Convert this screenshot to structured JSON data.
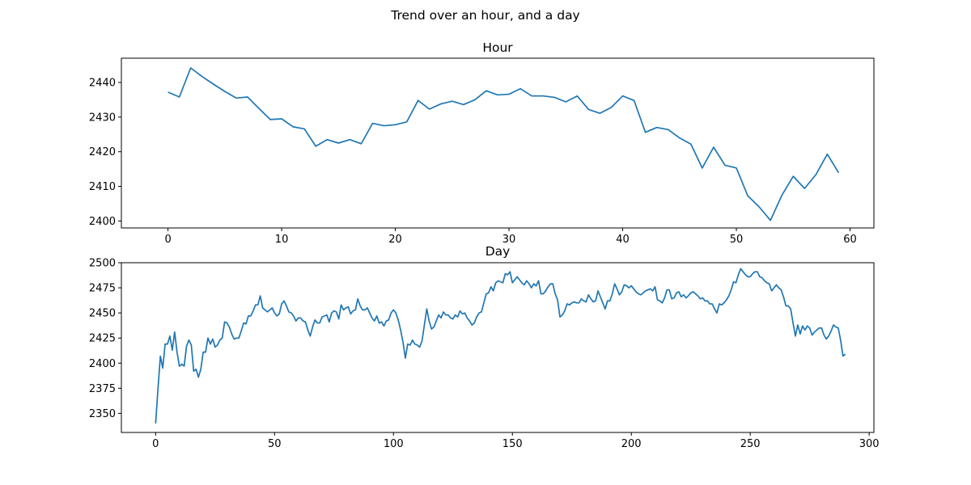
{
  "figure_title": "Trend over an hour, and a day",
  "line_color": "#1f77b4",
  "chart_data": [
    {
      "type": "line",
      "title": "Hour",
      "xlabel": "",
      "ylabel": "",
      "grid": false,
      "xlim": [
        -4.1,
        62.1
      ],
      "ylim": [
        2398,
        2447
      ],
      "xticks": [
        0,
        10,
        20,
        30,
        40,
        50,
        60
      ],
      "yticks": [
        2400,
        2410,
        2420,
        2430,
        2440
      ],
      "x_start": 0,
      "x_step": 1,
      "values": [
        2437.2,
        2435.8,
        2444.2,
        2441.7,
        2439.5,
        2437.4,
        2435.5,
        2435.8,
        2432.5,
        2429.3,
        2429.5,
        2427.2,
        2426.6,
        2421.6,
        2423.5,
        2422.5,
        2423.5,
        2422.3,
        2428.2,
        2427.5,
        2427.8,
        2428.6,
        2434.8,
        2432.3,
        2433.8,
        2434.6,
        2433.6,
        2435.0,
        2437.6,
        2436.4,
        2436.6,
        2438.2,
        2436.1,
        2436.1,
        2435.7,
        2434.4,
        2436.1,
        2432.2,
        2431.1,
        2432.8,
        2436.1,
        2434.8,
        2425.6,
        2427.0,
        2426.4,
        2424.0,
        2422.2,
        2415.3,
        2421.3,
        2416.1,
        2415.3,
        2407.3,
        2404.1,
        2400.2,
        2407.4,
        2412.9,
        2409.4,
        2413.4,
        2419.3,
        2413.9
      ]
    },
    {
      "type": "line",
      "title": "Day",
      "xlabel": "",
      "ylabel": "",
      "grid": false,
      "xlim": [
        -14.4,
        302
      ],
      "ylim": [
        2331,
        2500
      ],
      "xticks": [
        0,
        50,
        100,
        150,
        200,
        250,
        300
      ],
      "yticks": [
        2350,
        2375,
        2400,
        2425,
        2450,
        2475,
        2500
      ],
      "x_start": 0,
      "x_step": 1,
      "values": [
        2340,
        2375,
        2407,
        2395,
        2419,
        2419,
        2427,
        2413,
        2431,
        2411,
        2397,
        2399,
        2397,
        2417,
        2423,
        2418,
        2392,
        2394,
        2386,
        2394,
        2411,
        2411,
        2425,
        2419,
        2424,
        2416,
        2418,
        2423,
        2425,
        2441,
        2440,
        2436,
        2429,
        2424,
        2425,
        2425,
        2432,
        2440,
        2439,
        2447,
        2447,
        2452,
        2458,
        2458,
        2467,
        2455,
        2453,
        2451,
        2453,
        2455,
        2450,
        2447,
        2449,
        2459,
        2462,
        2457,
        2451,
        2450,
        2447,
        2442,
        2445,
        2445,
        2442,
        2441,
        2433,
        2427,
        2436,
        2443,
        2440,
        2440,
        2446,
        2447,
        2448,
        2441,
        2450,
        2452,
        2451,
        2444,
        2458,
        2453,
        2455,
        2456,
        2449,
        2452,
        2453,
        2464,
        2457,
        2453,
        2453,
        2455,
        2450,
        2445,
        2442,
        2447,
        2440,
        2441,
        2437,
        2442,
        2443,
        2450,
        2453,
        2450,
        2443,
        2433,
        2421,
        2405,
        2419,
        2418,
        2423,
        2419,
        2418,
        2416,
        2422,
        2438,
        2454,
        2442,
        2434,
        2436,
        2442,
        2448,
        2445,
        2451,
        2448,
        2448,
        2445,
        2444,
        2448,
        2446,
        2452,
        2449,
        2450,
        2445,
        2442,
        2438,
        2440,
        2446,
        2450,
        2451,
        2460,
        2469,
        2470,
        2476,
        2472,
        2480,
        2482,
        2481,
        2480,
        2489,
        2488,
        2491,
        2480,
        2483,
        2486,
        2483,
        2480,
        2478,
        2482,
        2479,
        2475,
        2479,
        2477,
        2482,
        2469,
        2469,
        2472,
        2476,
        2479,
        2479,
        2469,
        2463,
        2446,
        2448,
        2452,
        2459,
        2458,
        2460,
        2461,
        2460,
        2460,
        2464,
        2462,
        2461,
        2468,
        2464,
        2461,
        2462,
        2472,
        2466,
        2460,
        2454,
        2462,
        2462,
        2469,
        2479,
        2474,
        2468,
        2471,
        2478,
        2477,
        2475,
        2477,
        2474,
        2471,
        2469,
        2468,
        2470,
        2472,
        2473,
        2474,
        2472,
        2476,
        2463,
        2462,
        2460,
        2465,
        2473,
        2473,
        2464,
        2465,
        2470,
        2471,
        2466,
        2468,
        2465,
        2467,
        2470,
        2471,
        2469,
        2467,
        2464,
        2465,
        2462,
        2462,
        2459,
        2459,
        2454,
        2450,
        2459,
        2458,
        2460,
        2463,
        2467,
        2473,
        2481,
        2480,
        2488,
        2494,
        2491,
        2488,
        2486,
        2486,
        2489,
        2491,
        2491,
        2486,
        2485,
        2482,
        2480,
        2479,
        2472,
        2475,
        2478,
        2475,
        2473,
        2466,
        2457,
        2457,
        2454,
        2440,
        2427,
        2438,
        2429,
        2437,
        2433,
        2437,
        2435,
        2428,
        2431,
        2433,
        2435,
        2435,
        2428,
        2424,
        2427,
        2432,
        2438,
        2436,
        2435,
        2423,
        2407,
        2409
      ]
    }
  ]
}
